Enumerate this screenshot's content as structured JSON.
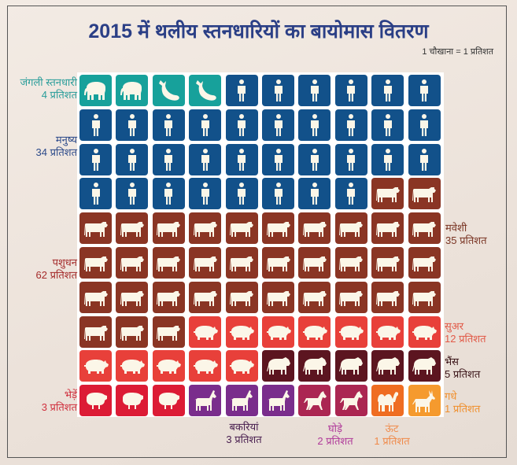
{
  "chart_data": {
    "type": "waffle",
    "title": "2015 में थलीय स्तनधारियों का बायोमास वितरण",
    "unit_note": "1 चौखाना = 1 प्रतिशत",
    "grid": {
      "rows": 10,
      "cols": 10
    },
    "series": [
      {
        "name": "जंगली स्तनधारी (हाथी)",
        "icon": "elephant-icon",
        "value": 2,
        "color": "#17a19b"
      },
      {
        "name": "जंगली स्तनधारी (व्हेल)",
        "icon": "whale-icon",
        "value": 2,
        "color": "#17a19b"
      },
      {
        "name": "मनुष्य",
        "icon": "human-icon",
        "value": 34,
        "color": "#12518a"
      },
      {
        "name": "मवेशी",
        "icon": "cow-icon",
        "value": 35,
        "color": "#8a3524"
      },
      {
        "name": "सुअर",
        "icon": "pig-icon",
        "value": 12,
        "color": "#e8403a"
      },
      {
        "name": "भैंस",
        "icon": "buffalo-icon",
        "value": 5,
        "color": "#5c1520"
      },
      {
        "name": "भेड़ें",
        "icon": "sheep-icon",
        "value": 3,
        "color": "#dc1b35"
      },
      {
        "name": "बकरियां",
        "icon": "goat-icon",
        "value": 3,
        "color": "#7a2d8c"
      },
      {
        "name": "घोड़े",
        "icon": "horse-icon",
        "value": 2,
        "color": "#ab2652"
      },
      {
        "name": "ऊंट",
        "icon": "camel-icon",
        "value": 1,
        "color": "#ef6d22"
      },
      {
        "name": "गधे",
        "icon": "donkey-icon",
        "value": 1,
        "color": "#f59a2e"
      }
    ],
    "labels": {
      "wild": {
        "name": "जंगली स्तनधारी",
        "pct": "4 प्रतिशत",
        "color": "#2a9d9a"
      },
      "human": {
        "name": "मनुष्य",
        "pct": "34 प्रतिशत",
        "color": "#2c4a8a"
      },
      "cattle": {
        "name": "मवेशी",
        "pct": "35 प्रतिशत",
        "color": "#7a3524"
      },
      "livestock": {
        "name": "पशुधन",
        "pct": "62 प्रतिशत",
        "color": "#a42a2a"
      },
      "pig": {
        "name": "सुअर",
        "pct": "12 प्रतिशत",
        "color": "#e25a48"
      },
      "buffalo": {
        "name": "भैंस",
        "pct": "5 प्रतिशत",
        "color": "#3a1418"
      },
      "sheep": {
        "name": "भेड़ें",
        "pct": "3 प्रतिशत",
        "color": "#d0303e"
      },
      "donkey": {
        "name": "गधे",
        "pct": "1 प्रतिशत",
        "color": "#f0902e"
      },
      "goat": {
        "name": "बकरियां",
        "pct": "3 प्रतिशत",
        "color": "#4a2050"
      },
      "horse": {
        "name": "घोड़े",
        "pct": "2 प्रतिशत",
        "color": "#b03a9a"
      },
      "camel": {
        "name": "ऊंट",
        "pct": "1 प्रतिशत",
        "color": "#f08a4a"
      }
    }
  }
}
